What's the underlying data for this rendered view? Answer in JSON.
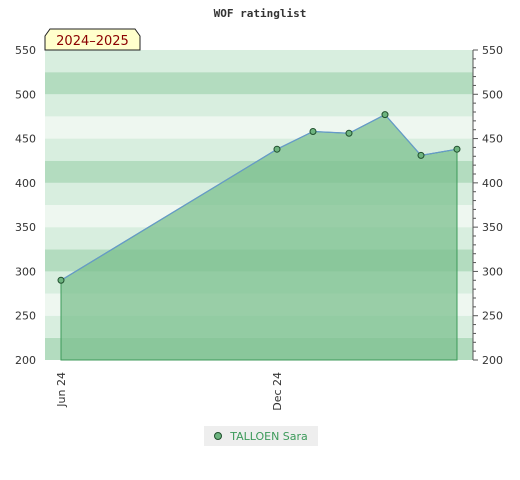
{
  "chart_data": {
    "type": "area",
    "title": "WOF ratinglist",
    "badge": "2024–2025",
    "x_tick_labels": [
      "Jun 24",
      "Dec 24"
    ],
    "ylim": [
      200,
      550
    ],
    "y_ticks": [
      200,
      250,
      300,
      350,
      400,
      450,
      500,
      550
    ],
    "grid": true,
    "legend_position": "bottom-center",
    "series": [
      {
        "name": "TALLOEN Sara",
        "color": "#6db47f",
        "x": [
          "2024-06",
          "2024-12",
          "2025-01",
          "2025-02",
          "2025-03",
          "2025-04",
          "2025-05"
        ],
        "values": [
          290,
          438,
          458,
          456,
          477,
          431,
          438
        ]
      }
    ],
    "colors": {
      "fill": "#7cc08f",
      "line": "#6699cc",
      "band_dark": "#b3dcbf",
      "band_light": "#d8eedf",
      "band_lighter": "#eef7f0"
    }
  }
}
